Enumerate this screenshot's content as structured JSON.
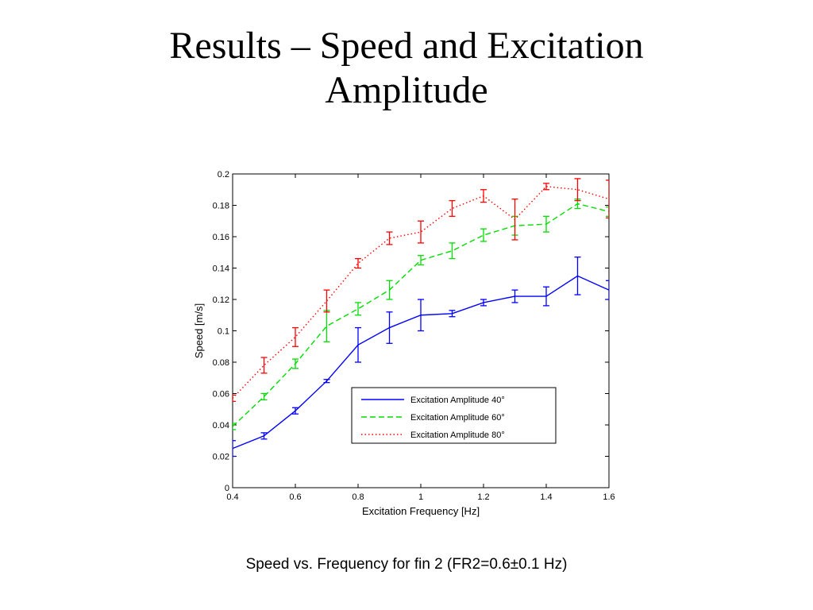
{
  "slide": {
    "title_line1": "Results – Speed and Excitation",
    "title_line2": "Amplitude",
    "caption": "Speed vs. Frequency for fin 2 (FR2=0.6±0.1 Hz)"
  },
  "chart_data": {
    "type": "line",
    "title": "",
    "xlabel": "Excitation Frequency [Hz]",
    "ylabel": "Speed [m/s]",
    "xlim": [
      0.4,
      1.6
    ],
    "ylim": [
      0,
      0.2
    ],
    "xticks": [
      0.4,
      0.6,
      0.8,
      1,
      1.2,
      1.4,
      1.6
    ],
    "yticks": [
      0,
      0.02,
      0.04,
      0.06,
      0.08,
      0.1,
      0.12,
      0.14,
      0.16,
      0.18,
      0.2
    ],
    "grid": false,
    "legend_position": "lower-right",
    "x": [
      0.4,
      0.5,
      0.6,
      0.7,
      0.8,
      0.9,
      1.0,
      1.1,
      1.2,
      1.3,
      1.4,
      1.5,
      1.6
    ],
    "series": [
      {
        "name": "Excitation Amplitude 40°",
        "color": "#0000ff",
        "dash": "solid",
        "values": [
          0.025,
          0.033,
          0.049,
          0.068,
          0.091,
          0.102,
          0.11,
          0.111,
          0.118,
          0.122,
          0.122,
          0.135,
          0.126
        ],
        "errors": [
          0.005,
          0.002,
          0.002,
          0.001,
          0.011,
          0.01,
          0.01,
          0.002,
          0.002,
          0.004,
          0.006,
          0.012,
          0.006
        ]
      },
      {
        "name": "Excitation Amplitude 60°",
        "color": "#00dd00",
        "dash": "dashed",
        "values": [
          0.039,
          0.058,
          0.079,
          0.103,
          0.114,
          0.126,
          0.145,
          0.151,
          0.161,
          0.167,
          0.168,
          0.181,
          0.176
        ],
        "errors": [
          0.002,
          0.002,
          0.003,
          0.01,
          0.004,
          0.006,
          0.003,
          0.005,
          0.004,
          0.006,
          0.005,
          0.003,
          0.003
        ]
      },
      {
        "name": "Excitation Amplitude 80°",
        "color": "#ff0000",
        "dash": "dotted",
        "values": [
          0.057,
          0.078,
          0.096,
          0.119,
          0.143,
          0.159,
          0.163,
          0.178,
          0.186,
          0.171,
          0.192,
          0.19,
          0.184
        ],
        "errors": [
          0.002,
          0.005,
          0.006,
          0.007,
          0.003,
          0.004,
          0.007,
          0.005,
          0.004,
          0.013,
          0.002,
          0.007,
          0.012
        ]
      }
    ]
  }
}
